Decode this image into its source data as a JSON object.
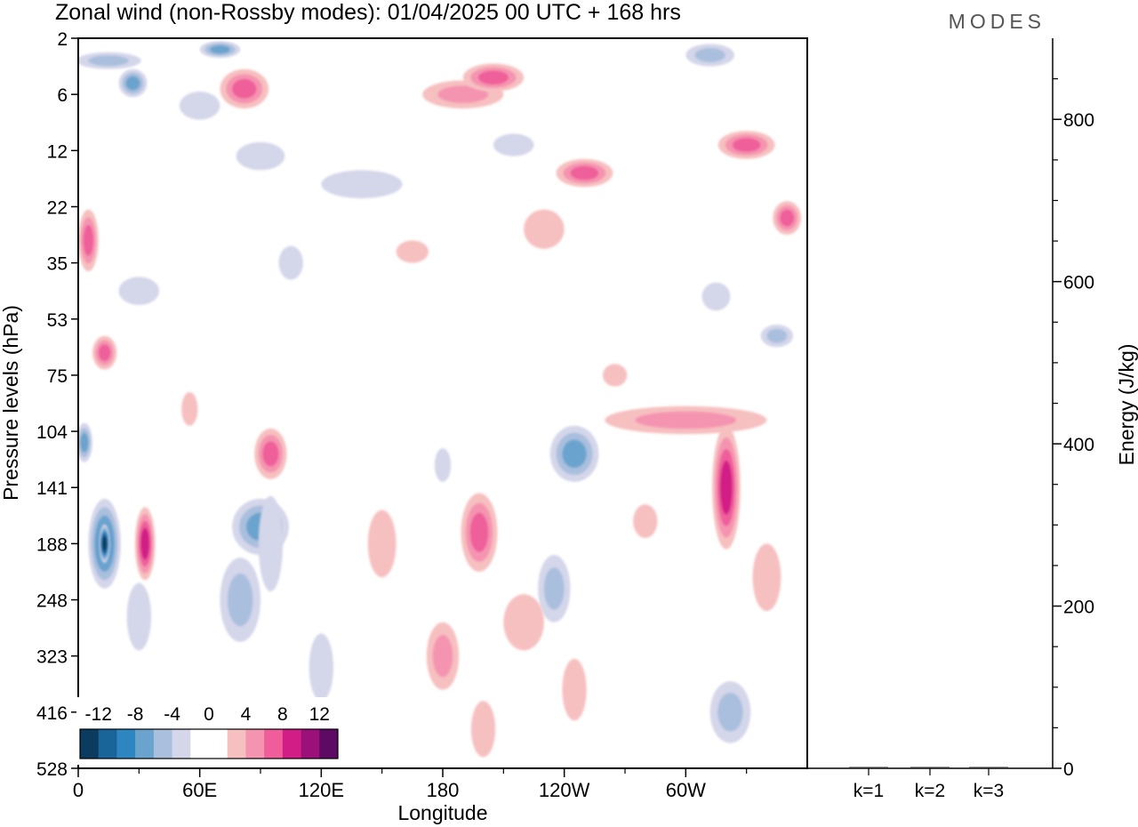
{
  "chart_data": [
    {
      "type": "heatmap",
      "title": "Zonal wind (non-Rossby modes):  01/04/2025  00 UTC  + 168 hrs",
      "brand": "MODES",
      "xlabel": "Longitude",
      "ylabel": "Pressure levels (hPa)",
      "x_ticks": [
        "0",
        "60E",
        "120E",
        "180",
        "120W",
        "60W"
      ],
      "x_tick_degrees": [
        0,
        60,
        120,
        180,
        240,
        300
      ],
      "xlim": [
        0,
        360
      ],
      "y_ticks": [
        "2",
        "6",
        "12",
        "22",
        "35",
        "53",
        "75",
        "104",
        "141",
        "188",
        "248",
        "323",
        "416",
        "528"
      ],
      "colorbar": {
        "labels": [
          "-12",
          "-8",
          "-4",
          "0",
          "4",
          "8",
          "12"
        ],
        "colors": [
          "#0b3b5e",
          "#19659a",
          "#2e86c1",
          "#6aa3ce",
          "#a9bfdd",
          "#d4d6ea",
          "#ffffff",
          "#ffffff",
          "#f7c0c0",
          "#f594b0",
          "#ef5e9a",
          "#d21d86",
          "#9c1179",
          "#5c0a63"
        ]
      },
      "blobs": [
        {
          "lon": 13,
          "lev": 9.0,
          "w": 8,
          "h": 1.6,
          "v": -8
        },
        {
          "lon": 13,
          "lev": 9.0,
          "w": 3,
          "h": 0.7,
          "v": -12
        },
        {
          "lon": 3,
          "lev": 7.2,
          "w": 4,
          "h": 0.7,
          "v": -6
        },
        {
          "lon": 33,
          "lev": 9.0,
          "w": 5,
          "h": 1.3,
          "v": 8
        },
        {
          "lon": 90,
          "lev": 8.7,
          "w": 14,
          "h": 1.0,
          "v": -6
        },
        {
          "lon": 80,
          "lev": 10.0,
          "w": 10,
          "h": 1.5,
          "v": -4
        },
        {
          "lon": 95,
          "lev": 7.4,
          "w": 8,
          "h": 0.9,
          "v": 6
        },
        {
          "lon": 180,
          "lev": 11.0,
          "w": 8,
          "h": 1.2,
          "v": 4
        },
        {
          "lon": 198,
          "lev": 8.8,
          "w": 9,
          "h": 1.4,
          "v": 6
        },
        {
          "lon": 245,
          "lev": 7.4,
          "w": 12,
          "h": 1.0,
          "v": -6
        },
        {
          "lon": 235,
          "lev": 9.8,
          "w": 8,
          "h": 1.2,
          "v": -4
        },
        {
          "lon": 320,
          "lev": 8.0,
          "w": 7,
          "h": 2.2,
          "v": 8
        },
        {
          "lon": 300,
          "lev": 6.8,
          "w": 40,
          "h": 0.5,
          "v": 4
        },
        {
          "lon": 322,
          "lev": 12.0,
          "w": 10,
          "h": 1.1,
          "v": -4
        },
        {
          "lon": 5,
          "lev": 3.6,
          "w": 5,
          "h": 1.1,
          "v": 6
        },
        {
          "lon": 13,
          "lev": 5.6,
          "w": 6,
          "h": 0.6,
          "v": 6
        },
        {
          "lon": 15,
          "lev": 0.4,
          "w": 16,
          "h": 0.3,
          "v": -4
        },
        {
          "lon": 27,
          "lev": 0.8,
          "w": 7,
          "h": 0.5,
          "v": -6
        },
        {
          "lon": 70,
          "lev": 0.2,
          "w": 10,
          "h": 0.3,
          "v": -6
        },
        {
          "lon": 82,
          "lev": 0.9,
          "w": 12,
          "h": 0.7,
          "v": 6
        },
        {
          "lon": 190,
          "lev": 1.0,
          "w": 20,
          "h": 0.5,
          "v": 4
        },
        {
          "lon": 205,
          "lev": 0.7,
          "w": 15,
          "h": 0.5,
          "v": 6
        },
        {
          "lon": 250,
          "lev": 2.4,
          "w": 14,
          "h": 0.5,
          "v": 6
        },
        {
          "lon": 330,
          "lev": 1.9,
          "w": 14,
          "h": 0.5,
          "v": 6
        },
        {
          "lon": 350,
          "lev": 3.2,
          "w": 7,
          "h": 0.6,
          "v": 6
        },
        {
          "lon": 312,
          "lev": 0.3,
          "w": 12,
          "h": 0.4,
          "v": -4
        },
        {
          "lon": 345,
          "lev": 5.3,
          "w": 8,
          "h": 0.4,
          "v": -4
        },
        {
          "lon": 140,
          "lev": 2.6,
          "w": 20,
          "h": 0.5,
          "v": -2
        },
        {
          "lon": 90,
          "lev": 2.1,
          "w": 12,
          "h": 0.5,
          "v": -2
        },
        {
          "lon": 215,
          "lev": 1.9,
          "w": 10,
          "h": 0.4,
          "v": -2
        },
        {
          "lon": 60,
          "lev": 1.2,
          "w": 10,
          "h": 0.5,
          "v": -2
        },
        {
          "lon": 105,
          "lev": 4.0,
          "w": 6,
          "h": 0.6,
          "v": -2
        },
        {
          "lon": 30,
          "lev": 4.5,
          "w": 10,
          "h": 0.5,
          "v": -2
        },
        {
          "lon": 230,
          "lev": 3.4,
          "w": 10,
          "h": 0.7,
          "v": 2
        },
        {
          "lon": 165,
          "lev": 3.8,
          "w": 8,
          "h": 0.4,
          "v": 2
        },
        {
          "lon": 95,
          "lev": 9.0,
          "w": 6,
          "h": 1.7,
          "v": -2
        },
        {
          "lon": 30,
          "lev": 10.3,
          "w": 6,
          "h": 1.2,
          "v": -2
        },
        {
          "lon": 120,
          "lev": 11.2,
          "w": 6,
          "h": 1.2,
          "v": -2
        },
        {
          "lon": 150,
          "lev": 9.0,
          "w": 7,
          "h": 1.2,
          "v": 2
        },
        {
          "lon": 220,
          "lev": 10.4,
          "w": 10,
          "h": 1.0,
          "v": 2
        },
        {
          "lon": 245,
          "lev": 11.6,
          "w": 6,
          "h": 1.1,
          "v": 2
        },
        {
          "lon": 280,
          "lev": 8.6,
          "w": 6,
          "h": 0.6,
          "v": 2
        },
        {
          "lon": 340,
          "lev": 9.6,
          "w": 7,
          "h": 1.2,
          "v": 2
        },
        {
          "lon": 200,
          "lev": 12.3,
          "w": 6,
          "h": 1.0,
          "v": 2
        },
        {
          "lon": 180,
          "lev": 7.6,
          "w": 4,
          "h": 0.6,
          "v": -2
        },
        {
          "lon": 265,
          "lev": 6.0,
          "w": 6,
          "h": 0.4,
          "v": 2
        },
        {
          "lon": 315,
          "lev": 4.6,
          "w": 7,
          "h": 0.5,
          "v": -2
        },
        {
          "lon": 55,
          "lev": 6.6,
          "w": 4,
          "h": 0.6,
          "v": 2
        }
      ],
      "right_panel": {
        "ylabel": "Energy (J/kg)",
        "ylim": [
          0,
          900
        ],
        "y_ticks": [
          "0",
          "200",
          "400",
          "600",
          "800"
        ],
        "categories": [
          "k=1",
          "k=2",
          "k=3"
        ],
        "values": [
          0.8,
          0.5,
          0.4
        ]
      }
    }
  ]
}
